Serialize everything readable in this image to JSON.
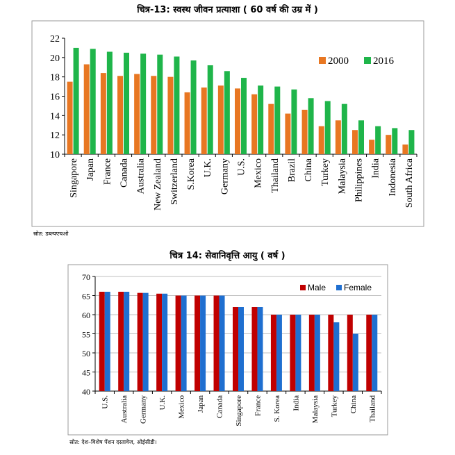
{
  "chart_data": [
    {
      "type": "bar",
      "title": "चित्र-13: स्वस्थ जीवन प्रत्याशा ( 60 वर्ष की उम्र में )",
      "categories": [
        "Singapore",
        "Japan",
        "France",
        "Canada",
        "Australia",
        "New Zealand",
        "Switzerland",
        "S.Korea",
        "U.K.",
        "Germany",
        "U.S.",
        "Mexico",
        "Thailand",
        "Brazil",
        "China",
        "Turkey",
        "Malaysia",
        "Philippines",
        "India",
        "Indonesia",
        "South Africa"
      ],
      "series": [
        {
          "name": "2000",
          "color": "#E87722",
          "values": [
            17.5,
            19.3,
            18.4,
            18.1,
            18.3,
            18.1,
            18.0,
            16.4,
            16.9,
            17.1,
            16.8,
            16.2,
            15.2,
            14.2,
            14.6,
            12.9,
            13.5,
            12.5,
            11.5,
            12.0,
            11.0
          ]
        },
        {
          "name": "2016",
          "color": "#1FB54A",
          "values": [
            21.0,
            20.9,
            20.6,
            20.5,
            20.4,
            20.3,
            20.1,
            19.7,
            19.2,
            18.6,
            17.9,
            17.1,
            17.0,
            16.7,
            15.8,
            15.5,
            15.2,
            13.5,
            12.9,
            12.7,
            12.5
          ]
        }
      ],
      "ylim": [
        10,
        22
      ],
      "yticks": [
        10,
        12,
        14,
        16,
        18,
        20,
        22
      ],
      "legend": "top-right",
      "grid": false,
      "source": "स्रोत: डब्ल्यएचओ"
    },
    {
      "type": "bar",
      "title": "चित्र 14: सेवानिवृत्ति आयु ( वर्ष )",
      "categories": [
        "U.S.",
        "Australia",
        "Germany",
        "U.K.",
        "Mexico",
        "Japan",
        "Canada",
        "Singapore",
        "France",
        "S. Korea",
        "India",
        "Malaysia",
        "Turkey",
        "China",
        "Thailand"
      ],
      "series": [
        {
          "name": "Male",
          "color": "#C00000",
          "values": [
            66,
            66,
            65.7,
            65.5,
            65,
            65,
            65,
            62,
            62,
            60,
            60,
            60,
            60,
            60,
            60
          ]
        },
        {
          "name": "Female",
          "color": "#1F6FD0",
          "values": [
            66,
            66,
            65.7,
            65.5,
            65,
            65,
            65,
            62,
            62,
            60,
            60,
            60,
            58,
            55,
            60
          ]
        }
      ],
      "ylim": [
        40,
        70
      ],
      "yticks": [
        40,
        45,
        50,
        55,
        60,
        65,
        70
      ],
      "legend": "top-right",
      "grid": true,
      "source": "स्रोत: देश–विशेष पेंशन दस्तावेज, ओईसीडी।"
    }
  ]
}
